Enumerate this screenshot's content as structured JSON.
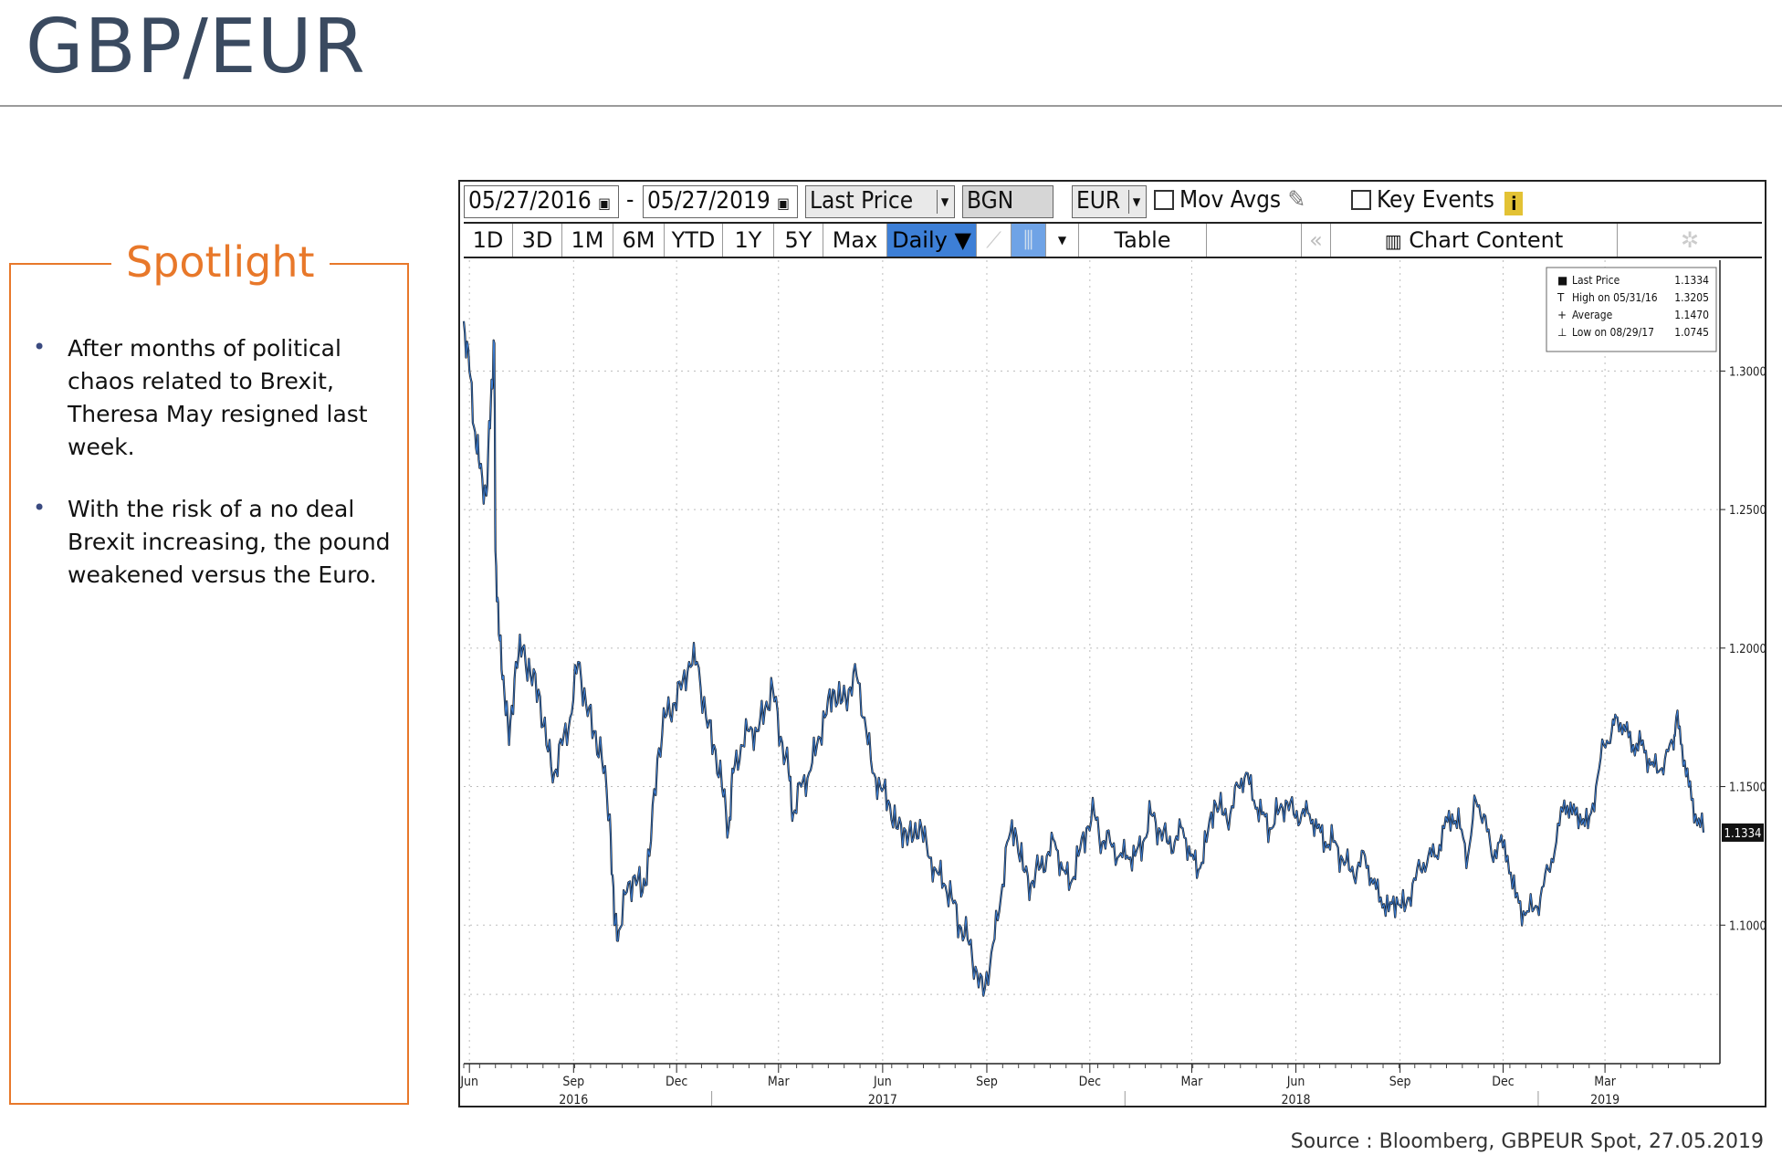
{
  "header": {
    "title": "GBP/EUR"
  },
  "spotlight": {
    "title": "Spotlight",
    "bullets": [
      "After months of political chaos related to Brexit, Theresa May resigned last week.",
      "With the risk of a no deal Brexit increasing, the pound weakened versus the Euro."
    ]
  },
  "toolbar": {
    "start_date": "05/27/2016",
    "separator": "-",
    "end_date": "05/27/2019",
    "field": "Last Price",
    "source": "BGN",
    "currency": "EUR",
    "mov_avgs": "Mov Avgs",
    "key_events": "Key Events",
    "ranges": [
      "1D",
      "3D",
      "1M",
      "6M",
      "YTD",
      "1Y",
      "5Y",
      "Max"
    ],
    "frequency": "Daily ▼",
    "table": "Table",
    "chart_content": "Chart Content",
    "info_icon": "i"
  },
  "legend": {
    "rows": [
      {
        "label": "Last Price",
        "value": "1.1334"
      },
      {
        "label": "High on 05/31/16",
        "value": "1.3205"
      },
      {
        "label": "Average",
        "value": "1.1470"
      },
      {
        "label": "Low on 08/29/17",
        "value": "1.0745"
      }
    ]
  },
  "chart_data": {
    "type": "line",
    "title": "GBP/EUR",
    "xlabel": "",
    "ylabel": "",
    "x_range": [
      "2016-05-27",
      "2019-05-27"
    ],
    "ylim": [
      1.05,
      1.34
    ],
    "y_ticks": [
      "1.3000",
      "1.2500",
      "1.2000",
      "1.1500",
      "1.1000"
    ],
    "y_tick_values": [
      1.3,
      1.25,
      1.2,
      1.15,
      1.1
    ],
    "x_tick_labels": [
      {
        "label": "Jun",
        "date": "2016-06-01"
      },
      {
        "label": "Sep",
        "date": "2016-09-01"
      },
      {
        "label": "Dec",
        "date": "2016-12-01"
      },
      {
        "label": "Mar",
        "date": "2017-03-01"
      },
      {
        "label": "Jun",
        "date": "2017-06-01"
      },
      {
        "label": "Sep",
        "date": "2017-09-01"
      },
      {
        "label": "Dec",
        "date": "2017-12-01"
      },
      {
        "label": "Mar",
        "date": "2018-03-01"
      },
      {
        "label": "Jun",
        "date": "2018-06-01"
      },
      {
        "label": "Sep",
        "date": "2018-09-01"
      },
      {
        "label": "Dec",
        "date": "2018-12-01"
      },
      {
        "label": "Mar",
        "date": "2019-03-01"
      }
    ],
    "year_labels": [
      {
        "label": "2016",
        "date": "2016-09-01"
      },
      {
        "label": "2017",
        "date": "2017-06-01"
      },
      {
        "label": "2018",
        "date": "2018-06-01"
      },
      {
        "label": "2019",
        "date": "2019-03-01"
      }
    ],
    "last_value_label": "1.1334",
    "grid": true,
    "legend_position": "top-right",
    "series": [
      {
        "name": "Last Price",
        "color": "#1a1a1a",
        "points": [
          [
            "2016-05-27",
            1.318
          ],
          [
            "2016-06-01",
            1.3
          ],
          [
            "2016-06-06",
            1.278
          ],
          [
            "2016-06-10",
            1.265
          ],
          [
            "2016-06-16",
            1.255
          ],
          [
            "2016-06-20",
            1.29
          ],
          [
            "2016-06-23",
            1.31
          ],
          [
            "2016-06-24",
            1.235
          ],
          [
            "2016-06-27",
            1.205
          ],
          [
            "2016-07-01",
            1.19
          ],
          [
            "2016-07-06",
            1.165
          ],
          [
            "2016-07-12",
            1.195
          ],
          [
            "2016-07-18",
            1.2
          ],
          [
            "2016-07-25",
            1.19
          ],
          [
            "2016-08-01",
            1.185
          ],
          [
            "2016-08-08",
            1.165
          ],
          [
            "2016-08-15",
            1.155
          ],
          [
            "2016-08-22",
            1.165
          ],
          [
            "2016-08-29",
            1.175
          ],
          [
            "2016-09-05",
            1.195
          ],
          [
            "2016-09-12",
            1.18
          ],
          [
            "2016-09-19",
            1.17
          ],
          [
            "2016-09-26",
            1.16
          ],
          [
            "2016-10-03",
            1.14
          ],
          [
            "2016-10-07",
            1.1
          ],
          [
            "2016-10-11",
            1.098
          ],
          [
            "2016-10-18",
            1.112
          ],
          [
            "2016-10-25",
            1.118
          ],
          [
            "2016-11-01",
            1.112
          ],
          [
            "2016-11-07",
            1.125
          ],
          [
            "2016-11-14",
            1.16
          ],
          [
            "2016-11-21",
            1.175
          ],
          [
            "2016-11-28",
            1.18
          ],
          [
            "2016-12-05",
            1.185
          ],
          [
            "2016-12-12",
            1.195
          ],
          [
            "2016-12-19",
            1.195
          ],
          [
            "2016-12-27",
            1.175
          ],
          [
            "2017-01-03",
            1.165
          ],
          [
            "2017-01-10",
            1.15
          ],
          [
            "2017-01-16",
            1.135
          ],
          [
            "2017-01-20",
            1.155
          ],
          [
            "2017-01-27",
            1.165
          ],
          [
            "2017-02-03",
            1.17
          ],
          [
            "2017-02-10",
            1.17
          ],
          [
            "2017-02-17",
            1.178
          ],
          [
            "2017-02-24",
            1.185
          ],
          [
            "2017-03-03",
            1.168
          ],
          [
            "2017-03-10",
            1.155
          ],
          [
            "2017-03-14",
            1.14
          ],
          [
            "2017-03-21",
            1.15
          ],
          [
            "2017-03-28",
            1.155
          ],
          [
            "2017-04-04",
            1.165
          ],
          [
            "2017-04-11",
            1.175
          ],
          [
            "2017-04-18",
            1.185
          ],
          [
            "2017-04-25",
            1.18
          ],
          [
            "2017-05-02",
            1.185
          ],
          [
            "2017-05-09",
            1.19
          ],
          [
            "2017-05-16",
            1.175
          ],
          [
            "2017-05-23",
            1.155
          ],
          [
            "2017-05-30",
            1.15
          ],
          [
            "2017-06-06",
            1.145
          ],
          [
            "2017-06-13",
            1.135
          ],
          [
            "2017-06-20",
            1.135
          ],
          [
            "2017-06-27",
            1.13
          ],
          [
            "2017-07-04",
            1.138
          ],
          [
            "2017-07-11",
            1.125
          ],
          [
            "2017-07-18",
            1.12
          ],
          [
            "2017-07-25",
            1.115
          ],
          [
            "2017-08-01",
            1.11
          ],
          [
            "2017-08-08",
            1.1
          ],
          [
            "2017-08-15",
            1.095
          ],
          [
            "2017-08-22",
            1.085
          ],
          [
            "2017-08-29",
            1.0745
          ],
          [
            "2017-09-05",
            1.09
          ],
          [
            "2017-09-12",
            1.105
          ],
          [
            "2017-09-19",
            1.13
          ],
          [
            "2017-09-26",
            1.135
          ],
          [
            "2017-10-03",
            1.12
          ],
          [
            "2017-10-10",
            1.115
          ],
          [
            "2017-10-17",
            1.12
          ],
          [
            "2017-10-24",
            1.125
          ],
          [
            "2017-10-31",
            1.13
          ],
          [
            "2017-11-07",
            1.12
          ],
          [
            "2017-11-14",
            1.115
          ],
          [
            "2017-11-21",
            1.125
          ],
          [
            "2017-11-28",
            1.135
          ],
          [
            "2017-12-05",
            1.14
          ],
          [
            "2017-12-12",
            1.13
          ],
          [
            "2017-12-19",
            1.13
          ],
          [
            "2017-12-27",
            1.125
          ],
          [
            "2018-01-03",
            1.125
          ],
          [
            "2018-01-10",
            1.125
          ],
          [
            "2018-01-17",
            1.13
          ],
          [
            "2018-01-24",
            1.14
          ],
          [
            "2018-01-31",
            1.135
          ],
          [
            "2018-02-07",
            1.13
          ],
          [
            "2018-02-14",
            1.13
          ],
          [
            "2018-02-21",
            1.135
          ],
          [
            "2018-02-28",
            1.125
          ],
          [
            "2018-03-07",
            1.12
          ],
          [
            "2018-03-14",
            1.13
          ],
          [
            "2018-03-21",
            1.145
          ],
          [
            "2018-03-28",
            1.14
          ],
          [
            "2018-04-04",
            1.14
          ],
          [
            "2018-04-11",
            1.15
          ],
          [
            "2018-04-18",
            1.155
          ],
          [
            "2018-04-25",
            1.145
          ],
          [
            "2018-05-02",
            1.14
          ],
          [
            "2018-05-09",
            1.135
          ],
          [
            "2018-05-16",
            1.14
          ],
          [
            "2018-05-23",
            1.145
          ],
          [
            "2018-05-30",
            1.14
          ],
          [
            "2018-06-06",
            1.14
          ],
          [
            "2018-06-13",
            1.14
          ],
          [
            "2018-06-20",
            1.135
          ],
          [
            "2018-06-27",
            1.13
          ],
          [
            "2018-07-04",
            1.13
          ],
          [
            "2018-07-11",
            1.125
          ],
          [
            "2018-07-18",
            1.12
          ],
          [
            "2018-07-25",
            1.12
          ],
          [
            "2018-08-01",
            1.125
          ],
          [
            "2018-08-08",
            1.115
          ],
          [
            "2018-08-15",
            1.11
          ],
          [
            "2018-08-22",
            1.105
          ],
          [
            "2018-08-29",
            1.11
          ],
          [
            "2018-09-05",
            1.105
          ],
          [
            "2018-09-12",
            1.115
          ],
          [
            "2018-09-19",
            1.12
          ],
          [
            "2018-09-26",
            1.125
          ],
          [
            "2018-10-03",
            1.125
          ],
          [
            "2018-10-10",
            1.135
          ],
          [
            "2018-10-17",
            1.14
          ],
          [
            "2018-10-24",
            1.135
          ],
          [
            "2018-10-31",
            1.125
          ],
          [
            "2018-11-07",
            1.145
          ],
          [
            "2018-11-14",
            1.14
          ],
          [
            "2018-11-21",
            1.125
          ],
          [
            "2018-11-28",
            1.13
          ],
          [
            "2018-12-05",
            1.125
          ],
          [
            "2018-12-12",
            1.11
          ],
          [
            "2018-12-19",
            1.105
          ],
          [
            "2018-12-27",
            1.105
          ],
          [
            "2019-01-03",
            1.11
          ],
          [
            "2019-01-10",
            1.12
          ],
          [
            "2019-01-17",
            1.13
          ],
          [
            "2019-01-24",
            1.145
          ],
          [
            "2019-01-31",
            1.14
          ],
          [
            "2019-02-07",
            1.14
          ],
          [
            "2019-02-14",
            1.135
          ],
          [
            "2019-02-21",
            1.15
          ],
          [
            "2019-02-28",
            1.165
          ],
          [
            "2019-03-07",
            1.17
          ],
          [
            "2019-03-12",
            1.175
          ],
          [
            "2019-03-19",
            1.17
          ],
          [
            "2019-03-26",
            1.165
          ],
          [
            "2019-04-02",
            1.165
          ],
          [
            "2019-04-09",
            1.16
          ],
          [
            "2019-04-16",
            1.155
          ],
          [
            "2019-04-23",
            1.16
          ],
          [
            "2019-04-30",
            1.165
          ],
          [
            "2019-05-03",
            1.175
          ],
          [
            "2019-05-08",
            1.165
          ],
          [
            "2019-05-14",
            1.15
          ],
          [
            "2019-05-20",
            1.14
          ],
          [
            "2019-05-27",
            1.1334
          ]
        ]
      }
    ]
  }
}
